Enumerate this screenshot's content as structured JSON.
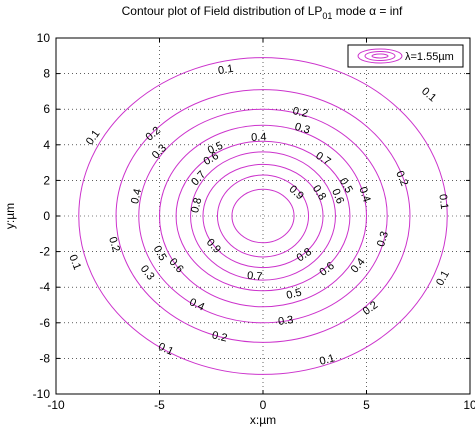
{
  "chart_data": {
    "type": "contour",
    "title_main": "Contour plot of Field distribution of LP",
    "title_sub": "01",
    "title_tail": " mode α = inf",
    "xlabel": "x:µm",
    "ylabel": "y:µm",
    "xlim": [
      -10,
      10
    ],
    "ylim": [
      -10,
      10
    ],
    "xticks": [
      -10,
      -5,
      0,
      5,
      10
    ],
    "yticks": [
      -10,
      -8,
      -6,
      -4,
      -2,
      0,
      2,
      4,
      6,
      8,
      10
    ],
    "grid": true,
    "grid_style": "dotted",
    "legend": {
      "position": "top-right",
      "entries": [
        "λ=1.55µm"
      ]
    },
    "series_color": "#cc33cc",
    "levels": [
      {
        "value": 0.1,
        "rx": 8.9,
        "ry": 8.9,
        "labels": [
          {
            "text": "0.1",
            "x": -1.8,
            "y": 8.2
          },
          {
            "text": "0.1",
            "x": 8.0,
            "y": 6.8
          },
          {
            "text": "0.1",
            "x": -8.2,
            "y": 4.4
          },
          {
            "text": "0.1",
            "x": 8.7,
            "y": 0.8
          },
          {
            "text": "0.1",
            "x": -9.1,
            "y": -2.6
          },
          {
            "text": "0.1",
            "x": 8.7,
            "y": -3.5
          },
          {
            "text": "0.1",
            "x": -4.7,
            "y": -7.5
          },
          {
            "text": "0.1",
            "x": 3.1,
            "y": -8.1
          }
        ]
      },
      {
        "value": 0.2,
        "rx": 7.1,
        "ry": 7.1,
        "labels": [
          {
            "text": "0.2",
            "x": 1.8,
            "y": 5.8
          },
          {
            "text": "0.2",
            "x": -5.3,
            "y": 4.6
          },
          {
            "text": "0.2",
            "x": 6.7,
            "y": 2.1
          },
          {
            "text": "0.2",
            "x": -7.2,
            "y": -1.6
          },
          {
            "text": "0.2",
            "x": 5.2,
            "y": -5.2
          },
          {
            "text": "0.2",
            "x": -2.1,
            "y": -6.8
          }
        ]
      },
      {
        "value": 0.3,
        "rx": 6.0,
        "ry": 6.0,
        "labels": [
          {
            "text": "0.3",
            "x": 1.9,
            "y": 4.9
          },
          {
            "text": "0.3",
            "x": -5.0,
            "y": 3.6
          },
          {
            "text": "0.3",
            "x": 5.8,
            "y": -1.3
          },
          {
            "text": "0.3",
            "x": -5.6,
            "y": -3.2
          },
          {
            "text": "0.3",
            "x": 1.1,
            "y": -5.9
          }
        ]
      },
      {
        "value": 0.4,
        "rx": 5.0,
        "ry": 5.1,
        "labels": [
          {
            "text": "0.4",
            "x": -0.2,
            "y": 4.4
          },
          {
            "text": "0.4",
            "x": -6.1,
            "y": 1.1
          },
          {
            "text": "0.4",
            "x": 4.9,
            "y": 1.2
          },
          {
            "text": "0.4",
            "x": 4.6,
            "y": -2.8
          },
          {
            "text": "0.4",
            "x": -3.2,
            "y": -5.0
          }
        ]
      },
      {
        "value": 0.5,
        "rx": 4.2,
        "ry": 4.2,
        "labels": [
          {
            "text": "0.5",
            "x": -2.3,
            "y": 3.8
          },
          {
            "text": "0.5",
            "x": 4.0,
            "y": 1.7
          },
          {
            "text": "0.5",
            "x": -5.0,
            "y": -2.1
          },
          {
            "text": "0.5",
            "x": 1.5,
            "y": -4.4
          }
        ]
      },
      {
        "value": 0.6,
        "rx": 3.5,
        "ry": 3.6,
        "labels": [
          {
            "text": "0.6",
            "x": -2.5,
            "y": 3.2
          },
          {
            "text": "0.6",
            "x": 3.6,
            "y": 1.1
          },
          {
            "text": "0.6",
            "x": -4.2,
            "y": -2.8
          },
          {
            "text": "0.6",
            "x": 3.1,
            "y": -3.0
          }
        ]
      },
      {
        "value": 0.7,
        "rx": 2.9,
        "ry": 2.9,
        "labels": [
          {
            "text": "0.7",
            "x": 2.9,
            "y": 3.2
          },
          {
            "text": "0.7",
            "x": -3.1,
            "y": 2.1
          },
          {
            "text": "0.7",
            "x": -0.4,
            "y": -3.4
          }
        ]
      },
      {
        "value": 0.8,
        "rx": 2.2,
        "ry": 2.3,
        "labels": [
          {
            "text": "0.8",
            "x": 2.7,
            "y": 1.3
          },
          {
            "text": "0.8",
            "x": -3.2,
            "y": 0.6
          },
          {
            "text": "0.8",
            "x": 2.0,
            "y": -2.2
          }
        ]
      },
      {
        "value": 0.9,
        "rx": 1.5,
        "ry": 1.5,
        "labels": [
          {
            "text": "0.9",
            "x": 1.6,
            "y": 1.3
          },
          {
            "text": "0.9",
            "x": -2.4,
            "y": -1.7
          }
        ]
      }
    ]
  }
}
